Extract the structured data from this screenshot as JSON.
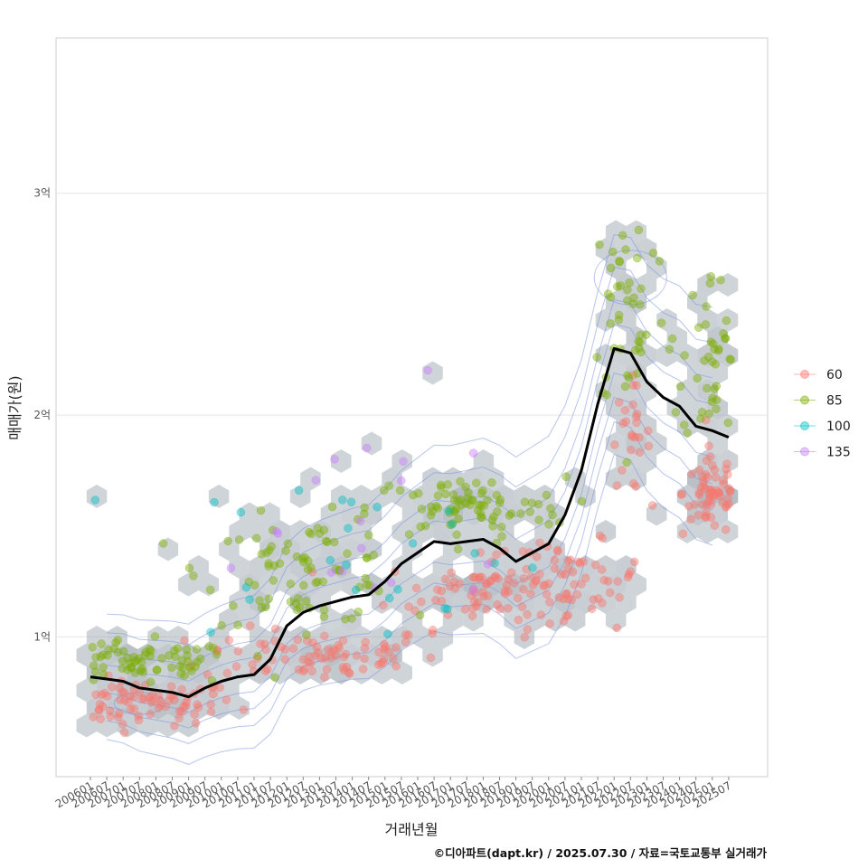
{
  "chart_data": {
    "type": "scatter",
    "xlabel": "거래년월",
    "ylabel": "매매가(원)",
    "caption": "©디아파트(dapt.kr) / 2025.07.30 / 자료=국토교통부 실거래가",
    "ylim": [
      37000000,
      370000000
    ],
    "y_ticks": [
      {
        "value": 100000000,
        "label": "1억"
      },
      {
        "value": 200000000,
        "label": "2억"
      },
      {
        "value": 300000000,
        "label": "3억"
      }
    ],
    "x_tick_labels": [
      "200601",
      "200607",
      "200701",
      "200707",
      "200801",
      "200807",
      "200901",
      "200907",
      "201001",
      "201007",
      "201101",
      "201107",
      "201201",
      "201207",
      "201301",
      "201307",
      "201401",
      "201407",
      "201501",
      "201507",
      "201601",
      "201607",
      "201701",
      "201707",
      "201801",
      "201807",
      "201901",
      "201907",
      "202001",
      "202007",
      "202101",
      "202107",
      "202201",
      "202207",
      "202301",
      "202307",
      "202401",
      "202407",
      "202501",
      "202507"
    ],
    "grid": "horizontal major lines",
    "legend": {
      "placement": "right",
      "entries": [
        {
          "label": "60",
          "color": "#F8766D"
        },
        {
          "label": "85",
          "color": "#7CAE00"
        },
        {
          "label": "100",
          "color": "#00BFC4"
        },
        {
          "label": "135",
          "color": "#C77CFF"
        }
      ]
    },
    "layers": [
      "hexbin density (grey)",
      "2d density contours (blue)",
      "scatter points by area group",
      "moving average line (black)"
    ],
    "colors": {
      "hex": "#9AA5AE",
      "contour": "#7B93E0",
      "trend": "#000000",
      "panel_border": "#CCCCCC",
      "grid": "#E5E5E5"
    },
    "trend_line": {
      "name": "",
      "points": [
        [
          "200601",
          82
        ],
        [
          "200607",
          81
        ],
        [
          "200701",
          80
        ],
        [
          "200707",
          77
        ],
        [
          "200801",
          76
        ],
        [
          "200807",
          75
        ],
        [
          "200901",
          73
        ],
        [
          "200907",
          77
        ],
        [
          "201001",
          80
        ],
        [
          "201007",
          82
        ],
        [
          "201101",
          83
        ],
        [
          "201107",
          90
        ],
        [
          "201201",
          105
        ],
        [
          "201207",
          111
        ],
        [
          "201301",
          114
        ],
        [
          "201307",
          116
        ],
        [
          "201401",
          118
        ],
        [
          "201407",
          119
        ],
        [
          "201501",
          125
        ],
        [
          "201507",
          133
        ],
        [
          "201601",
          138
        ],
        [
          "201607",
          143
        ],
        [
          "201701",
          142
        ],
        [
          "201707",
          143
        ],
        [
          "201801",
          144
        ],
        [
          "201807",
          140
        ],
        [
          "201901",
          134
        ],
        [
          "201907",
          138
        ],
        [
          "202001",
          142
        ],
        [
          "202007",
          155
        ],
        [
          "202101",
          175
        ],
        [
          "202107",
          205
        ],
        [
          "202201",
          230
        ],
        [
          "202207",
          228
        ],
        [
          "202301",
          215
        ],
        [
          "202307",
          208
        ],
        [
          "202401",
          204
        ],
        [
          "202407",
          195
        ],
        [
          "202501",
          193
        ],
        [
          "202507",
          190
        ]
      ]
    },
    "clusters": [
      {
        "label": "60",
        "center_x": 3,
        "center_y": 70,
        "spread_x": 5,
        "spread_y": 5,
        "count": 90
      },
      {
        "label": "60",
        "center_x": 14,
        "center_y": 92,
        "spread_x": 6,
        "spread_y": 6,
        "count": 80
      },
      {
        "label": "60",
        "center_x": 24,
        "center_y": 120,
        "spread_x": 5,
        "spread_y": 8,
        "count": 70
      },
      {
        "label": "60",
        "center_x": 29,
        "center_y": 127,
        "spread_x": 4,
        "spread_y": 8,
        "count": 60
      },
      {
        "label": "60",
        "center_x": 33,
        "center_y": 190,
        "spread_x": 1,
        "spread_y": 12,
        "count": 25
      },
      {
        "label": "60",
        "center_x": 38,
        "center_y": 165,
        "spread_x": 1.5,
        "spread_y": 10,
        "count": 60
      },
      {
        "label": "85",
        "center_x": 3,
        "center_y": 88,
        "spread_x": 5,
        "spread_y": 5,
        "count": 80
      },
      {
        "label": "85",
        "center_x": 13,
        "center_y": 130,
        "spread_x": 5,
        "spread_y": 12,
        "count": 80
      },
      {
        "label": "85",
        "center_x": 23,
        "center_y": 158,
        "spread_x": 5,
        "spread_y": 7,
        "count": 80
      },
      {
        "label": "85",
        "center_x": 33,
        "center_y": 250,
        "spread_x": 2,
        "spread_y": 25,
        "count": 45
      },
      {
        "label": "85",
        "center_x": 38,
        "center_y": 225,
        "spread_x": 1.5,
        "spread_y": 20,
        "count": 45
      },
      {
        "label": "100",
        "center_x": 16,
        "center_y": 140,
        "spread_x": 10,
        "spread_y": 20,
        "count": 25
      },
      {
        "label": "135",
        "center_x": 16,
        "center_y": 150,
        "spread_x": 12,
        "spread_y": 30,
        "count": 18
      }
    ]
  }
}
